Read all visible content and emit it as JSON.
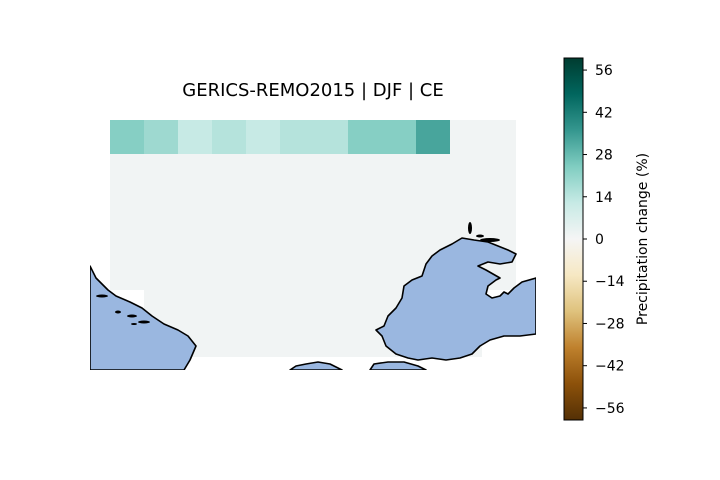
{
  "title": "GERICS-REMO2015 | DJF | CE",
  "colorbar": {
    "label": "Precipitation change (%)",
    "range": [
      -60,
      60
    ],
    "ticks": [
      56,
      42,
      28,
      14,
      0,
      -14,
      -28,
      -42,
      -56
    ],
    "tick_labels": [
      "56",
      "42",
      "28",
      "14",
      "0",
      "−14",
      "−28",
      "−42",
      "−56"
    ],
    "colormap": "BrBG",
    "stops": [
      "#543005",
      "#8c510a",
      "#bf812d",
      "#dfc27d",
      "#f6e8c3",
      "#f5f5f5",
      "#c7eae5",
      "#80cdc1",
      "#35978f",
      "#01665e",
      "#003c30"
    ]
  },
  "map": {
    "land_color": "#9ab7e0",
    "coastline_color": "#000000",
    "grid_top_row_values": [
      23,
      19,
      12,
      15,
      12,
      15,
      15,
      23,
      23,
      33,
      1,
      1
    ],
    "grid_background_value": 1
  }
}
